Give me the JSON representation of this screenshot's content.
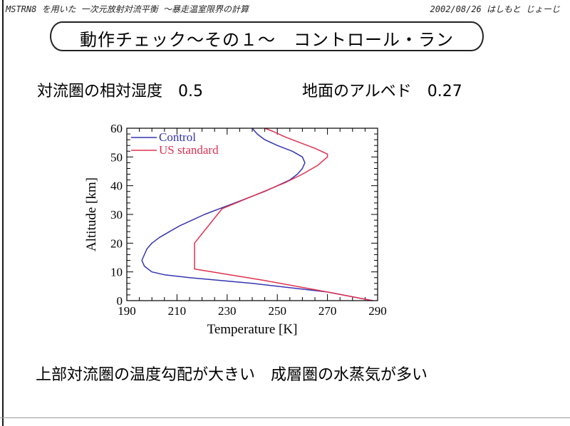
{
  "header": {
    "left_note": "MSTRN8 を用いた 一次元放射対流平衡 ～暴走温室限界の計算",
    "right_note": "2002/08/26 はしもと じょーじ"
  },
  "slide": {
    "title": "動作チェック～その１～　コントロール・ラン",
    "param_rh": "対流圏の相対湿度　0.5",
    "param_albedo": "地面のアルベド　0.27",
    "summary": "上部対流圏の温度勾配が大きい　成層圏の水蒸気が多い"
  },
  "colors": {
    "control": "#3535b0",
    "us_standard": "#e0304f",
    "axis": "#000000"
  },
  "chart_data": {
    "type": "line",
    "xlabel": "Temperature  [K]",
    "ylabel": "Altitude  [km]",
    "xlim": [
      190,
      290
    ],
    "ylim": [
      0,
      60
    ],
    "xticks": [
      190,
      210,
      230,
      250,
      270,
      290
    ],
    "yticks": [
      0,
      10,
      20,
      30,
      40,
      50,
      60
    ],
    "x_minor_step": 5,
    "y_minor_step": 2,
    "legend_position": "top-left",
    "series": [
      {
        "name": "Control",
        "color": "#3535b0",
        "points": [
          [
            288,
            0
          ],
          [
            270,
            3
          ],
          [
            240,
            6
          ],
          [
            215,
            8
          ],
          [
            205,
            9
          ],
          [
            200,
            10
          ],
          [
            197,
            12
          ],
          [
            196,
            14
          ],
          [
            197,
            16
          ],
          [
            198,
            18
          ],
          [
            200,
            20
          ],
          [
            203,
            22
          ],
          [
            207,
            24
          ],
          [
            211,
            26
          ],
          [
            216,
            28
          ],
          [
            221,
            30
          ],
          [
            227,
            32
          ],
          [
            233,
            34
          ],
          [
            239,
            36
          ],
          [
            245,
            38
          ],
          [
            250,
            40
          ],
          [
            255,
            42
          ],
          [
            258,
            44
          ],
          [
            260,
            46
          ],
          [
            261,
            48
          ],
          [
            260,
            50
          ],
          [
            256,
            52
          ],
          [
            250,
            54
          ],
          [
            245,
            56
          ],
          [
            242,
            58
          ],
          [
            240,
            60
          ]
        ]
      },
      {
        "name": "US standard",
        "color": "#e0304f",
        "points": [
          [
            288,
            0
          ],
          [
            270,
            3
          ],
          [
            245,
            7
          ],
          [
            217,
            11
          ],
          [
            217,
            20
          ],
          [
            228,
            32
          ],
          [
            253,
            41
          ],
          [
            260,
            44
          ],
          [
            266,
            47
          ],
          [
            270,
            50
          ],
          [
            270,
            51
          ],
          [
            265,
            53
          ],
          [
            259,
            55
          ],
          [
            253,
            57
          ],
          [
            248,
            59
          ],
          [
            245,
            60
          ]
        ]
      }
    ]
  }
}
